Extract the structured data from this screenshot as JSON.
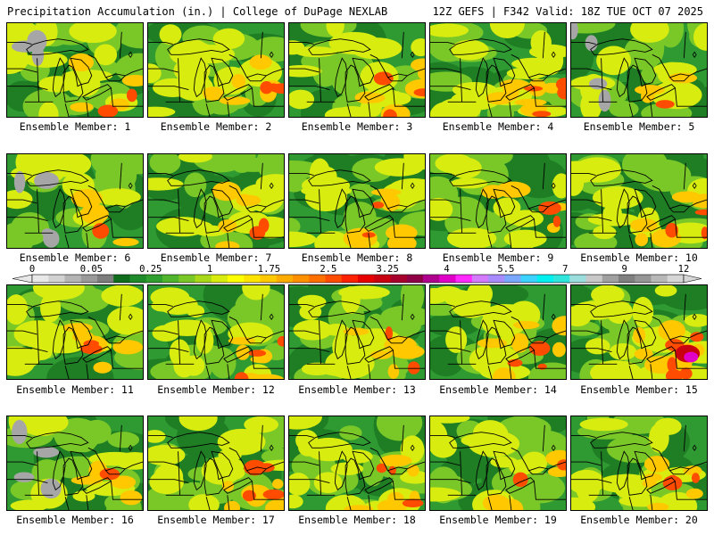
{
  "header": {
    "title_left": "Precipitation Accumulation (in.) | College of DuPage NEXLAB",
    "title_right": "12Z GEFS | F342 Valid: 18Z TUE OCT 07 2025"
  },
  "members": [
    {
      "label": "Ensemble Member: 1",
      "wet": 0.25
    },
    {
      "label": "Ensemble Member: 2",
      "wet": 0.45
    },
    {
      "label": "Ensemble Member: 3",
      "wet": 0.55
    },
    {
      "label": "Ensemble Member: 4",
      "wet": 0.6
    },
    {
      "label": "Ensemble Member: 5",
      "wet": 0.1
    },
    {
      "label": "Ensemble Member: 6",
      "wet": 0.2
    },
    {
      "label": "Ensemble Member: 7",
      "wet": 0.35
    },
    {
      "label": "Ensemble Member: 8",
      "wet": 0.4
    },
    {
      "label": "Ensemble Member: 9",
      "wet": 0.3
    },
    {
      "label": "Ensemble Member: 10",
      "wet": 0.45
    },
    {
      "label": "Ensemble Member: 11",
      "wet": 0.35
    },
    {
      "label": "Ensemble Member: 12",
      "wet": 0.5
    },
    {
      "label": "Ensemble Member: 13",
      "wet": 0.4
    },
    {
      "label": "Ensemble Member: 14",
      "wet": 0.45
    },
    {
      "label": "Ensemble Member: 15",
      "wet": 0.8
    },
    {
      "label": "Ensemble Member: 16",
      "wet": 0.2
    },
    {
      "label": "Ensemble Member: 17",
      "wet": 0.6
    },
    {
      "label": "Ensemble Member: 18",
      "wet": 0.55
    },
    {
      "label": "Ensemble Member: 19",
      "wet": 0.35
    },
    {
      "label": "Ensemble Member: 20",
      "wet": 0.5
    }
  ],
  "colorbar": {
    "labels": [
      "0",
      "0.05",
      "0.25",
      "1",
      "1.75",
      "2.5",
      "3.25",
      "4",
      "5.5",
      "7",
      "9",
      "12"
    ],
    "colors": [
      "#e8e8e8",
      "#d2d2d2",
      "#b4b4b4",
      "#9a9a9a",
      "#7d7d7d",
      "#0f6d1c",
      "#1f8a2a",
      "#2fa02f",
      "#50b42c",
      "#7ac828",
      "#a8d818",
      "#d8ec10",
      "#ffff00",
      "#ffe400",
      "#ffc800",
      "#ffac00",
      "#ff9000",
      "#ff7000",
      "#ff4c00",
      "#ff2200",
      "#e80000",
      "#c80010",
      "#a8002c",
      "#900046",
      "#b0008e",
      "#e000c8",
      "#ff28ff",
      "#d47aff",
      "#a88cff",
      "#7aa8ff",
      "#3cd2ff",
      "#00f0f0",
      "#30e6dc",
      "#9adede",
      "#c8c8c8",
      "#a0a0a0",
      "#808080",
      "#969696",
      "#b8b8b8",
      "#d6d6d6"
    ]
  }
}
